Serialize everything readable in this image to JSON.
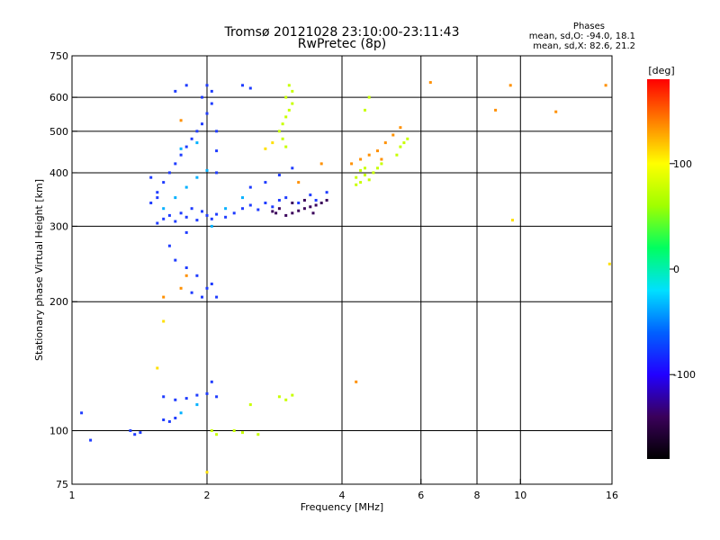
{
  "chart_data": {
    "type": "scatter",
    "title": "Tromsø 20121028 23:10:00-23:11:43",
    "subtitle": "RwPretec (8p)",
    "annotation": {
      "heading": "Phases",
      "line1": "mean, sd,O: -94.0, 18.1",
      "line2": "mean, sd,X:  82.6, 21.2"
    },
    "xlabel": "Frequency [MHz]",
    "ylabel": "Stationary phase Virtual Height [km]",
    "x_scale": "log",
    "y_scale": "log",
    "xlim": [
      1,
      16
    ],
    "ylim": [
      75,
      750
    ],
    "xticks": [
      1,
      2,
      4,
      6,
      8,
      10,
      16
    ],
    "xtick_labels": [
      "1",
      "2",
      "4",
      "6",
      "8",
      "10",
      "16"
    ],
    "yticks": [
      75,
      100,
      200,
      300,
      400,
      500,
      600,
      750
    ],
    "ytick_labels": [
      "75",
      "100",
      "200",
      "300",
      "400",
      "500",
      "600",
      "750"
    ],
    "x_gridlines": [
      2,
      4,
      6,
      8,
      10
    ],
    "y_gridlines": [
      100,
      200,
      300,
      400,
      500,
      600
    ],
    "colorbar": {
      "label": "[deg]",
      "range": [
        -180,
        180
      ],
      "ticks": [
        100,
        0,
        -100
      ],
      "tick_labels": [
        "100",
        "0",
        "-100"
      ],
      "colormap": [
        "#000000",
        "#3a005a",
        "#2200ff",
        "#0060ff",
        "#00e0ff",
        "#00ff60",
        "#a0ff00",
        "#ffff00",
        "#ff8000",
        "#ff0000"
      ]
    },
    "series": [
      {
        "color": "#1f3cff",
        "points": [
          [
            1.55,
            305
          ],
          [
            1.6,
            312
          ],
          [
            1.65,
            318
          ],
          [
            1.7,
            308
          ],
          [
            1.75,
            322
          ],
          [
            1.8,
            315
          ],
          [
            1.85,
            330
          ],
          [
            1.9,
            310
          ],
          [
            1.95,
            325
          ],
          [
            2.0,
            318
          ],
          [
            2.05,
            312
          ],
          [
            2.1,
            320
          ],
          [
            2.2,
            315
          ],
          [
            2.3,
            322
          ],
          [
            2.4,
            330
          ],
          [
            2.5,
            336
          ],
          [
            2.6,
            328
          ],
          [
            2.7,
            340
          ],
          [
            2.8,
            333
          ],
          [
            2.9,
            345
          ],
          [
            1.5,
            340
          ],
          [
            1.55,
            360
          ],
          [
            1.6,
            380
          ],
          [
            1.65,
            400
          ],
          [
            1.7,
            420
          ],
          [
            1.75,
            440
          ],
          [
            1.8,
            460
          ],
          [
            1.85,
            480
          ],
          [
            1.9,
            500
          ],
          [
            1.95,
            520
          ],
          [
            2.0,
            550
          ],
          [
            2.05,
            580
          ],
          [
            2.05,
            620
          ],
          [
            2.0,
            640
          ],
          [
            1.95,
            600
          ],
          [
            2.1,
            500
          ],
          [
            2.1,
            450
          ],
          [
            2.1,
            400
          ],
          [
            1.8,
            290
          ],
          [
            1.65,
            270
          ],
          [
            1.7,
            250
          ],
          [
            1.8,
            240
          ],
          [
            1.9,
            230
          ],
          [
            2.0,
            215
          ],
          [
            2.05,
            220
          ],
          [
            2.1,
            205
          ],
          [
            1.85,
            210
          ],
          [
            1.95,
            205
          ],
          [
            1.6,
            120
          ],
          [
            1.7,
            118
          ],
          [
            1.8,
            119
          ],
          [
            1.9,
            121
          ],
          [
            2.0,
            122
          ],
          [
            2.1,
            120
          ],
          [
            2.05,
            130
          ],
          [
            1.6,
            106
          ],
          [
            1.65,
            105
          ],
          [
            1.7,
            107
          ],
          [
            1.35,
            100
          ],
          [
            1.38,
            98
          ],
          [
            1.42,
            99
          ],
          [
            1.1,
            95
          ],
          [
            1.05,
            110
          ],
          [
            1.5,
            390
          ],
          [
            1.55,
            350
          ],
          [
            3.0,
            350
          ],
          [
            3.2,
            340
          ],
          [
            3.4,
            355
          ],
          [
            3.5,
            345
          ],
          [
            3.7,
            360
          ],
          [
            2.5,
            370
          ],
          [
            2.7,
            380
          ],
          [
            2.9,
            395
          ],
          [
            3.1,
            410
          ],
          [
            1.7,
            620
          ],
          [
            1.8,
            640
          ],
          [
            2.4,
            640
          ],
          [
            2.5,
            630
          ]
        ]
      },
      {
        "color": "#00b0ff",
        "points": [
          [
            1.6,
            330
          ],
          [
            1.7,
            350
          ],
          [
            1.8,
            370
          ],
          [
            1.9,
            390
          ],
          [
            2.0,
            405
          ],
          [
            1.75,
            455
          ],
          [
            1.9,
            470
          ],
          [
            2.05,
            300
          ],
          [
            2.2,
            330
          ],
          [
            2.4,
            350
          ],
          [
            1.9,
            115
          ],
          [
            1.75,
            110
          ]
        ]
      },
      {
        "color": "#3a005a",
        "points": [
          [
            3.0,
            318
          ],
          [
            3.1,
            322
          ],
          [
            3.2,
            326
          ],
          [
            3.3,
            330
          ],
          [
            3.4,
            333
          ],
          [
            3.5,
            336
          ],
          [
            3.6,
            340
          ],
          [
            3.7,
            345
          ],
          [
            3.3,
            345
          ],
          [
            3.1,
            340
          ],
          [
            2.9,
            330
          ],
          [
            2.8,
            325
          ],
          [
            2.85,
            322
          ],
          [
            3.45,
            322
          ]
        ]
      },
      {
        "color": "#c8ff00",
        "points": [
          [
            2.9,
            500
          ],
          [
            2.95,
            520
          ],
          [
            3.0,
            540
          ],
          [
            3.05,
            560
          ],
          [
            3.1,
            580
          ],
          [
            3.0,
            600
          ],
          [
            3.1,
            620
          ],
          [
            3.05,
            640
          ],
          [
            2.95,
            480
          ],
          [
            3.0,
            460
          ],
          [
            4.3,
            390
          ],
          [
            4.4,
            380
          ],
          [
            4.5,
            395
          ],
          [
            4.6,
            385
          ],
          [
            4.7,
            400
          ],
          [
            4.4,
            405
          ],
          [
            4.5,
            410
          ],
          [
            4.3,
            375
          ],
          [
            4.8,
            410
          ],
          [
            4.9,
            420
          ],
          [
            5.4,
            460
          ],
          [
            5.5,
            470
          ],
          [
            5.6,
            480
          ],
          [
            5.3,
            440
          ],
          [
            4.5,
            560
          ],
          [
            4.6,
            600
          ],
          [
            2.05,
            100
          ],
          [
            2.1,
            98
          ],
          [
            2.3,
            100
          ],
          [
            2.4,
            99
          ],
          [
            2.6,
            98
          ],
          [
            2.9,
            120
          ],
          [
            3.0,
            118
          ],
          [
            3.1,
            121
          ],
          [
            2.5,
            115
          ]
        ]
      },
      {
        "color": "#ff9000",
        "points": [
          [
            4.2,
            420
          ],
          [
            4.4,
            430
          ],
          [
            4.6,
            440
          ],
          [
            4.8,
            450
          ],
          [
            5.0,
            470
          ],
          [
            5.2,
            490
          ],
          [
            4.9,
            430
          ],
          [
            5.4,
            510
          ],
          [
            1.75,
            530
          ],
          [
            1.8,
            230
          ],
          [
            1.75,
            215
          ],
          [
            1.6,
            205
          ],
          [
            6.3,
            650
          ],
          [
            8.8,
            560
          ],
          [
            9.5,
            640
          ],
          [
            15.5,
            640
          ],
          [
            12,
            555
          ],
          [
            4.3,
            130
          ],
          [
            3.2,
            380
          ],
          [
            3.6,
            420
          ]
        ]
      },
      {
        "color": "#ffe000",
        "points": [
          [
            9.6,
            310
          ],
          [
            15.8,
            245
          ],
          [
            2.0,
            80
          ],
          [
            1.55,
            140
          ],
          [
            1.6,
            180
          ],
          [
            2.8,
            470
          ],
          [
            2.7,
            455
          ]
        ]
      }
    ]
  }
}
